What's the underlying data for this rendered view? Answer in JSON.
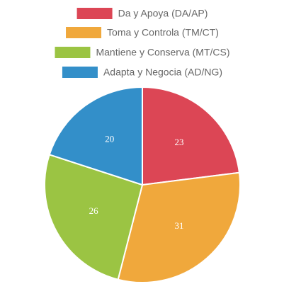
{
  "chart_data": {
    "type": "pie",
    "categories": [
      "Da y Apoya (DA/AP)",
      "Toma y Controla (TM/CT)",
      "Mantiene y Conserva (MT/CS)",
      "Adapta y Negocia (AD/NG)"
    ],
    "values": [
      23,
      31,
      26,
      20
    ],
    "colors": [
      "#dc4655",
      "#f0a83c",
      "#9bc443",
      "#338fc9"
    ],
    "legend": "top"
  }
}
